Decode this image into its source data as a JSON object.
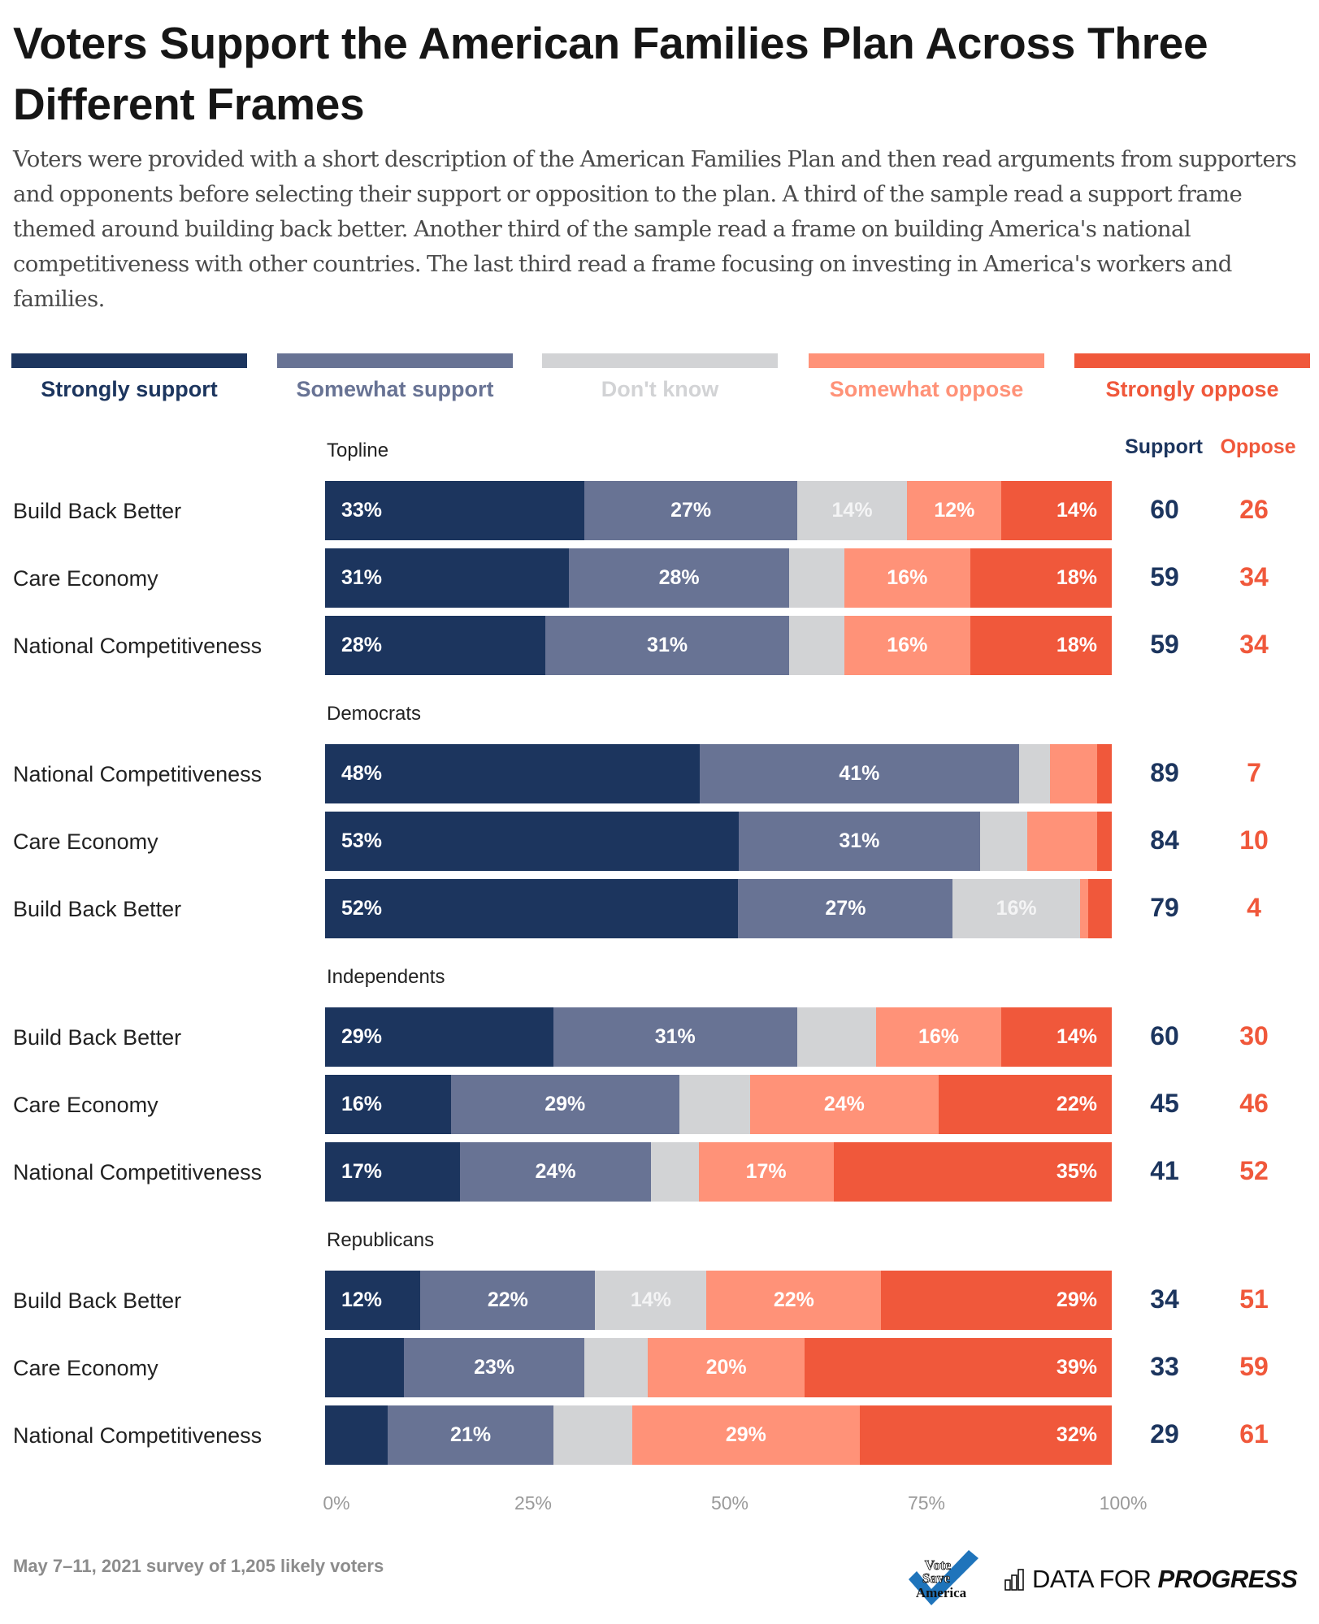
{
  "header": {
    "title": "Voters Support the American Families Plan Across Three Different Frames",
    "description": "Voters were provided with a short description of the American Families Plan and then read arguments from supporters and opponents before selecting their support or opposition to the plan. A third of the sample read a support frame themed around building back better. Another third of the sample read a frame on building America's national competitiveness with other countries. The last third read a frame focusing on investing in America's workers and families."
  },
  "colors": {
    "strongly_support": "#1C355E",
    "somewhat_support": "#687394",
    "dont_know": "#D2D3D5",
    "somewhat_oppose": "#FF9278",
    "strongly_oppose": "#F0583B",
    "support_text": "#1C355E",
    "oppose_text": "#F0583B"
  },
  "columns": {
    "support_header": "Support",
    "oppose_header": "Oppose"
  },
  "footer": {
    "note": "May 7–11, 2021 survey of 1,205 likely voters",
    "logo_left": "Vote Save America",
    "logo_right_light": "DATA FOR",
    "logo_right_bold": "PROGRESS"
  },
  "chart_data": {
    "type": "bar",
    "orientation": "horizontal-stacked-100",
    "title": "Voters Support the American Families Plan Across Three Different Frames",
    "legend": [
      "Strongly support",
      "Somewhat support",
      "Don't know",
      "Somewhat oppose",
      "Strongly oppose"
    ],
    "legend_position": "top",
    "xlim": [
      0,
      100
    ],
    "xticks": [
      "0%",
      "25%",
      "50%",
      "75%",
      "100%"
    ],
    "grid": false,
    "groups": [
      {
        "name": "Topline",
        "rows": [
          {
            "label": "Build Back Better",
            "values": [
              33,
              27,
              14,
              12,
              14
            ],
            "labels": [
              "33%",
              "27%",
              "14%",
              "12%",
              "14%"
            ],
            "support": "60",
            "oppose": "26"
          },
          {
            "label": "Care Economy",
            "values": [
              31,
              28,
              7,
              16,
              18
            ],
            "labels": [
              "31%",
              "28%",
              "",
              "16%",
              "18%"
            ],
            "support": "59",
            "oppose": "34"
          },
          {
            "label": "National Competitiveness",
            "values": [
              28,
              31,
              7,
              16,
              18
            ],
            "labels": [
              "28%",
              "31%",
              "",
              "16%",
              "18%"
            ],
            "support": "59",
            "oppose": "34"
          }
        ]
      },
      {
        "name": "Democrats",
        "rows": [
          {
            "label": "National Competitiveness",
            "values": [
              48,
              41,
              4,
              6,
              1
            ],
            "labels": [
              "48%",
              "41%",
              "",
              "",
              ""
            ],
            "support": "89",
            "oppose": "7"
          },
          {
            "label": "Care Economy",
            "values": [
              53,
              31,
              6,
              9,
              1
            ],
            "labels": [
              "53%",
              "31%",
              "",
              "",
              ""
            ],
            "support": "84",
            "oppose": "10"
          },
          {
            "label": "Build Back Better",
            "values": [
              52,
              27,
              16,
              1,
              3
            ],
            "labels": [
              "52%",
              "27%",
              "16%",
              "",
              ""
            ],
            "support": "79",
            "oppose": "4"
          }
        ]
      },
      {
        "name": "Independents",
        "rows": [
          {
            "label": "Build Back Better",
            "values": [
              29,
              31,
              10,
              16,
              14
            ],
            "labels": [
              "29%",
              "31%",
              "",
              "16%",
              "14%"
            ],
            "support": "60",
            "oppose": "30"
          },
          {
            "label": "Care Economy",
            "values": [
              16,
              29,
              9,
              24,
              22
            ],
            "labels": [
              "16%",
              "29%",
              "",
              "24%",
              "22%"
            ],
            "support": "45",
            "oppose": "46"
          },
          {
            "label": "National Competitiveness",
            "values": [
              17,
              24,
              6,
              17,
              35
            ],
            "labels": [
              "17%",
              "24%",
              "",
              "17%",
              "35%"
            ],
            "support": "41",
            "oppose": "52"
          }
        ]
      },
      {
        "name": "Republicans",
        "rows": [
          {
            "label": "Build Back Better",
            "values": [
              12,
              22,
              14,
              22,
              29
            ],
            "labels": [
              "12%",
              "22%",
              "14%",
              "22%",
              "29%"
            ],
            "support": "34",
            "oppose": "51"
          },
          {
            "label": "Care Economy",
            "values": [
              10,
              23,
              8,
              20,
              39
            ],
            "labels": [
              "",
              "23%",
              "",
              "20%",
              "39%"
            ],
            "support": "33",
            "oppose": "59"
          },
          {
            "label": "National Competitiveness",
            "values": [
              8,
              21,
              10,
              29,
              32
            ],
            "labels": [
              "",
              "21%",
              "",
              "29%",
              "32%"
            ],
            "support": "29",
            "oppose": "61"
          }
        ]
      }
    ]
  }
}
